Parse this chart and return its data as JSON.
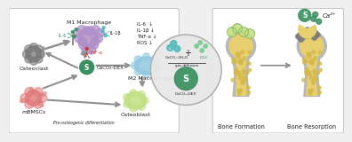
{
  "bg_color": "#f0f0f0",
  "left_box_color": "#ffffff",
  "left_box_border": "#bbbbbb",
  "right_box_color": "#ffffff",
  "right_box_border": "#bbbbbb",
  "labels": {
    "m1": "M1 Macrophage",
    "m2": "M2 Macrophage",
    "osteoclast": "Osteoclast",
    "osteoblast": "Osteoblast",
    "mbmscs": "mBMSCs",
    "pro_osteo": "Pro-osteogenic differentiation",
    "caco3_dex_center": "CaCO₃-DEX",
    "il6_down": "IL-6  ↓",
    "il1b_down": "IL-1β ↓",
    "tnfa_down": "TNF-α ↓",
    "ros_down": "ROS ↓",
    "il6_arrow": "IL-6",
    "il1b_arrow": "IL-1β",
    "tnfa_arrow": "TNF-α",
    "bone_formation": "Bone Formation",
    "bone_resorption": "Bone Resorption",
    "ca2plus": "Ca²⁺",
    "caco3_2h2o": "CaCO₃·2H₂O",
    "dex": "DEX",
    "gas_diffusion": "gas diffusion",
    "caco3_dex_circle": "CaCO₃-DEX",
    "plus": "+"
  },
  "circle_color": "#aaaaaa",
  "m1_color": "#b090c8",
  "m2_color": "#90c8e0",
  "osteoblast_color": "#c0e080",
  "osteoclast_color": "#787878",
  "mbmscs_color": "#e07878",
  "caco3_dex_color": "#3a9060",
  "arrow_color": "#909090",
  "bone_yellow": "#d4b84a",
  "bone_outer_color": "#b8b8b8",
  "bone_marrow_color": "#e8d070",
  "green_dot_color": "#3a9060",
  "label_color": "#222222",
  "dashed_green": "#3a9060",
  "red_dot_color": "#cc3333",
  "teal_dot_color": "#50b8b8"
}
